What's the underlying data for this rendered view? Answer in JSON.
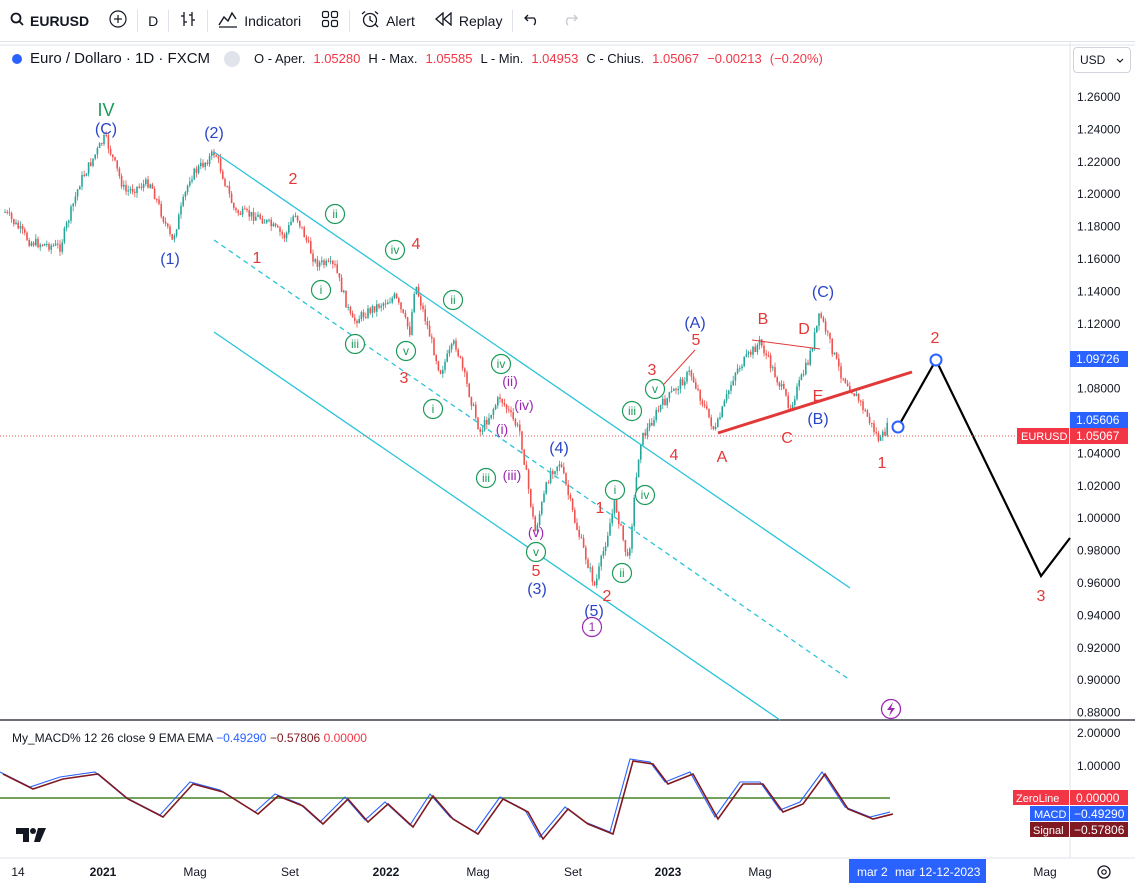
{
  "toolbar": {
    "symbol": "EURUSD",
    "interval": "D",
    "indicators_label": "Indicatori",
    "alert_label": "Alert",
    "replay_label": "Replay"
  },
  "legend": {
    "title": "Euro / Dollaro · 1D · FXCM",
    "open_label": "O - Aper.",
    "open_value": "1.05280",
    "high_label": "H - Max.",
    "high_value": "1.05585",
    "low_label": "L - Min.",
    "low_value": "1.04953",
    "close_label": "C - Chius.",
    "close_value": "1.05067",
    "change": "−0.00213",
    "change_pct": "(−0.20%)"
  },
  "currency": "USD",
  "price_axis": [
    "1.26000",
    "1.24000",
    "1.22000",
    "1.20000",
    "1.18000",
    "1.16000",
    "1.14000",
    "1.12000",
    "1.10000",
    "1.08000",
    "1.06000",
    "1.04000",
    "1.02000",
    "1.00000",
    "0.98000",
    "0.96000",
    "0.94000",
    "0.92000",
    "0.90000",
    "0.88000"
  ],
  "price_badges": {
    "level_a": "1.09726",
    "level_b": "1.05606",
    "symbol_label": "EURUSD",
    "last_price": "1.05067"
  },
  "time_axis": [
    "14",
    "2021",
    "Mag",
    "Set",
    "2022",
    "Mag",
    "Set",
    "2023",
    "Mag",
    "Mag"
  ],
  "time_badges": {
    "crosshair_a": "mar 2",
    "crosshair_b": "mar 12-12-2023"
  },
  "macd": {
    "legend_name": "My_MACD% 12 26 close 9 EMA EMA",
    "macd_value": "−0.49290",
    "signal_value": "−0.57806",
    "zero_value": "0.00000",
    "axis": [
      "2.00000",
      "1.00000",
      "0.00000"
    ],
    "badge_zero_label": "ZeroLine",
    "badge_zero_value": "0.00000",
    "badge_macd_label": "MACD",
    "badge_macd_value": "−0.49290",
    "badge_signal_label": "Signal",
    "badge_signal_value": "−0.57806"
  },
  "wave_labels": {
    "green_IV": "IV",
    "blue": [
      "(C)",
      "(2)",
      "(1)",
      "(4)",
      "(3)",
      "(5)",
      "(A)",
      "(B)",
      "(C)"
    ],
    "red": [
      "2",
      "1",
      "4",
      "3",
      "5",
      "1",
      "2",
      "3",
      "5",
      "4",
      "A",
      "B",
      "C",
      "D",
      "E",
      "1",
      "2",
      "3"
    ],
    "circled_green": [
      "ii",
      "iv",
      "i",
      "ii",
      "iii",
      "v",
      "i",
      "iv",
      "iii",
      "v",
      "iii",
      "i",
      "ii",
      "iv",
      "v",
      "iii"
    ],
    "purple": [
      "(ii)",
      "(iv)",
      "(i)",
      "(iii)",
      "(v)"
    ],
    "circled_purple": "1"
  },
  "colors": {
    "up": "#26a69a",
    "down": "#ef5350",
    "wave_blue": "#2a45c8",
    "wave_red": "#e23838",
    "wave_green": "#1c9a5a",
    "wave_purple": "#9c27b0",
    "channel": "#29c4d8",
    "macd": "#2962ff",
    "signal": "#801922",
    "zero_red": "#ef5350",
    "zero_green": "#4caf50"
  }
}
